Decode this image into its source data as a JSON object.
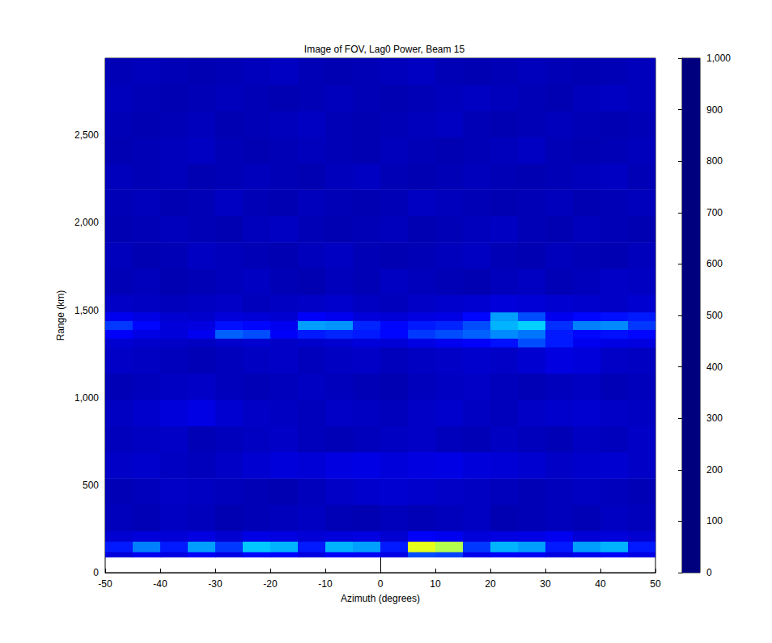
{
  "chart_data": {
    "type": "heatmap",
    "title": "Image of FOV, Lag0 Power, Beam 15",
    "x_label": "Azimuth (degrees)",
    "y_label": "Range (km)",
    "xlim": [
      -50,
      50
    ],
    "xticks": [
      -50,
      -40,
      -30,
      -20,
      -10,
      0,
      10,
      20,
      30,
      40,
      50
    ],
    "ylim": [
      0,
      2940
    ],
    "yticks": [
      0,
      500,
      1000,
      1500,
      2000,
      2500
    ],
    "x_edges": [
      -50,
      -45,
      -40,
      -35,
      -30,
      -25,
      -20,
      -15,
      -10,
      -5,
      0,
      5,
      10,
      15,
      20,
      25,
      30,
      35,
      40,
      45,
      50
    ],
    "y_edges": [
      90,
      120,
      180,
      240,
      390,
      540,
      690,
      840,
      990,
      1140,
      1290,
      1340,
      1390,
      1440,
      1490,
      1590,
      1740,
      1890,
      2040,
      2190,
      2340,
      2490,
      2640,
      2790,
      2940
    ],
    "values": [
      [
        90,
        110,
        95,
        120,
        100,
        130,
        125,
        95,
        120,
        115,
        100,
        200,
        190,
        105,
        120,
        115,
        95,
        110,
        120,
        100
      ],
      [
        150,
        250,
        150,
        280,
        180,
        320,
        300,
        150,
        300,
        280,
        150,
        600,
        550,
        180,
        300,
        280,
        150,
        280,
        300,
        150
      ],
      [
        80,
        90,
        85,
        95,
        80,
        100,
        95,
        85,
        90,
        95,
        80,
        120,
        110,
        90,
        95,
        100,
        110,
        85,
        90,
        80
      ],
      [
        60,
        55,
        65,
        60,
        50,
        55,
        60,
        65,
        55,
        50,
        60,
        55,
        60,
        65,
        50,
        55,
        60,
        55,
        65,
        60
      ],
      [
        55,
        60,
        70,
        65,
        60,
        55,
        50,
        60,
        70,
        75,
        80,
        75,
        70,
        65,
        60,
        55,
        60,
        65,
        60,
        55
      ],
      [
        70,
        75,
        65,
        60,
        70,
        80,
        90,
        85,
        95,
        100,
        90,
        95,
        100,
        90,
        85,
        80,
        70,
        75,
        80,
        70
      ],
      [
        60,
        65,
        70,
        55,
        60,
        65,
        70,
        60,
        55,
        60,
        65,
        70,
        60,
        55,
        65,
        60,
        55,
        65,
        60,
        70
      ],
      [
        65,
        75,
        90,
        100,
        80,
        70,
        65,
        60,
        70,
        65,
        60,
        70,
        75,
        65,
        60,
        70,
        75,
        80,
        70,
        65
      ],
      [
        55,
        60,
        65,
        70,
        60,
        55,
        60,
        65,
        60,
        55,
        50,
        60,
        65,
        70,
        60,
        55,
        60,
        65,
        55,
        60
      ],
      [
        70,
        65,
        60,
        55,
        60,
        65,
        70,
        60,
        65,
        70,
        60,
        65,
        70,
        75,
        70,
        80,
        95,
        90,
        70,
        65
      ],
      [
        80,
        75,
        70,
        65,
        75,
        80,
        70,
        75,
        80,
        90,
        85,
        100,
        110,
        120,
        140,
        200,
        150,
        110,
        100,
        95
      ],
      [
        120,
        100,
        90,
        110,
        220,
        200,
        120,
        150,
        160,
        150,
        130,
        180,
        200,
        220,
        260,
        240,
        150,
        130,
        140,
        130
      ],
      [
        180,
        130,
        90,
        95,
        140,
        130,
        110,
        280,
        270,
        160,
        130,
        150,
        160,
        200,
        300,
        330,
        170,
        250,
        260,
        180
      ],
      [
        110,
        100,
        80,
        75,
        90,
        85,
        80,
        120,
        110,
        90,
        85,
        95,
        100,
        130,
        280,
        200,
        110,
        130,
        140,
        150
      ],
      [
        70,
        65,
        60,
        65,
        70,
        60,
        65,
        70,
        75,
        65,
        60,
        70,
        75,
        80,
        90,
        85,
        80,
        75,
        70,
        80
      ],
      [
        55,
        60,
        50,
        55,
        60,
        65,
        55,
        50,
        60,
        55,
        65,
        60,
        55,
        50,
        60,
        65,
        55,
        60,
        70,
        65
      ],
      [
        60,
        50,
        55,
        65,
        60,
        55,
        50,
        60,
        65,
        55,
        50,
        55,
        60,
        65,
        55,
        50,
        60,
        55,
        50,
        60
      ],
      [
        50,
        55,
        60,
        55,
        50,
        60,
        65,
        55,
        50,
        55,
        60,
        50,
        55,
        60,
        65,
        55,
        50,
        60,
        55,
        50
      ],
      [
        55,
        60,
        50,
        55,
        65,
        55,
        50,
        60,
        55,
        50,
        55,
        65,
        60,
        55,
        50,
        55,
        60,
        50,
        55,
        60
      ],
      [
        60,
        55,
        60,
        50,
        55,
        60,
        55,
        50,
        60,
        65,
        55,
        50,
        55,
        60,
        55,
        50,
        55,
        60,
        65,
        55
      ],
      [
        50,
        55,
        60,
        65,
        55,
        50,
        55,
        60,
        55,
        50,
        60,
        55,
        50,
        55,
        60,
        65,
        55,
        50,
        55,
        60
      ],
      [
        55,
        50,
        55,
        60,
        50,
        55,
        60,
        65,
        55,
        50,
        55,
        60,
        65,
        55,
        50,
        55,
        60,
        55,
        50,
        55
      ],
      [
        60,
        55,
        50,
        55,
        60,
        55,
        50,
        55,
        60,
        55,
        50,
        55,
        60,
        65,
        60,
        55,
        50,
        60,
        65,
        60
      ],
      [
        55,
        60,
        55,
        50,
        55,
        60,
        65,
        55,
        50,
        55,
        60,
        65,
        55,
        50,
        55,
        60,
        55,
        50,
        55,
        60
      ]
    ],
    "colorbar": {
      "range": [
        0,
        1000
      ],
      "ticks": [
        0,
        100,
        200,
        300,
        400,
        500,
        600,
        700,
        800,
        900,
        1000
      ]
    }
  }
}
